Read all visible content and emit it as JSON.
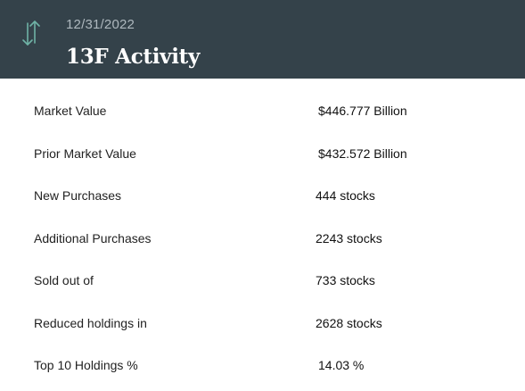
{
  "header": {
    "icon": "arrows-up-down-icon",
    "icon_color": "#6fb3a6",
    "background": "#34424a",
    "date": "12/31/2022",
    "title": "13F Activity"
  },
  "rows": [
    {
      "label": "Market Value",
      "value": "$446.777 Billion"
    },
    {
      "label": "Prior Market Value",
      "value": "$432.572 Billion"
    },
    {
      "label": "New Purchases",
      "value": "444 stocks"
    },
    {
      "label": "Additional Purchases",
      "value": "2243 stocks"
    },
    {
      "label": "Sold out of",
      "value": "733 stocks"
    },
    {
      "label": "Reduced holdings in",
      "value": "2628 stocks"
    },
    {
      "label": "Top 10 Holdings %",
      "value": "14.03 %"
    }
  ]
}
